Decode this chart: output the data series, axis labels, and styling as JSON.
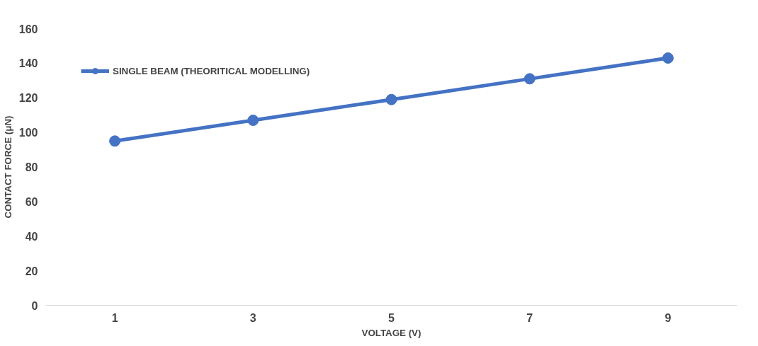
{
  "chart_data": {
    "type": "line",
    "xlabel": "VOLTAGE (V)",
    "ylabel": "CONTACT FORCE (μN)",
    "categories": [
      "1",
      "3",
      "5",
      "7",
      "9"
    ],
    "series": [
      {
        "name": "SINGLE BEAM (THEORITICAL MODELLING)",
        "color": "#4472c4",
        "values": [
          95,
          107,
          119,
          131,
          143
        ]
      }
    ],
    "ylim": [
      0,
      160
    ],
    "yticks": [
      0,
      20,
      40,
      60,
      80,
      100,
      120,
      140,
      160
    ],
    "grid": false,
    "legend": "top left",
    "marker": "circle",
    "line_style": "solid"
  }
}
